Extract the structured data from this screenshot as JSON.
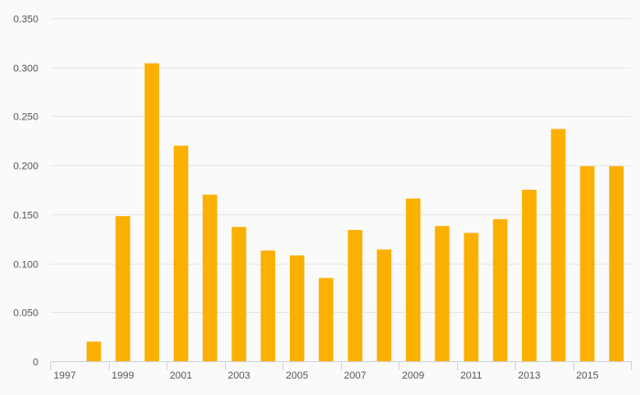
{
  "chart_data": {
    "type": "bar",
    "categories": [
      "1997",
      "1998",
      "1999",
      "2000",
      "2001",
      "2002",
      "2003",
      "2004",
      "2005",
      "2006",
      "2007",
      "2008",
      "2009",
      "2010",
      "2011",
      "2012",
      "2013",
      "2014",
      "2015",
      "2016"
    ],
    "values": [
      0,
      0.02,
      0.148,
      0.304,
      0.22,
      0.17,
      0.137,
      0.113,
      0.108,
      0.085,
      0.134,
      0.114,
      0.166,
      0.138,
      0.131,
      0.145,
      0.175,
      0.237,
      0.199,
      0.199
    ],
    "x_tick_labels": [
      "1997",
      "1999",
      "2001",
      "2003",
      "2005",
      "2007",
      "2009",
      "2011",
      "2013",
      "2015"
    ],
    "y_tick_labels": [
      "0",
      "0.050",
      "0.100",
      "0.150",
      "0.200",
      "0.250",
      "0.300",
      "0.350"
    ],
    "y_ticks": [
      0,
      0.05,
      0.1,
      0.15,
      0.2,
      0.25,
      0.3,
      0.35
    ],
    "ylim": [
      0,
      0.35
    ],
    "title": "",
    "xlabel": "",
    "ylabel": "",
    "grid": true,
    "legend": "none",
    "colors": {
      "bar": "#FBB000",
      "grid": "#e6e6e6",
      "axis": "#cfd3da",
      "text": "#555555",
      "background": "#fafafa"
    }
  }
}
